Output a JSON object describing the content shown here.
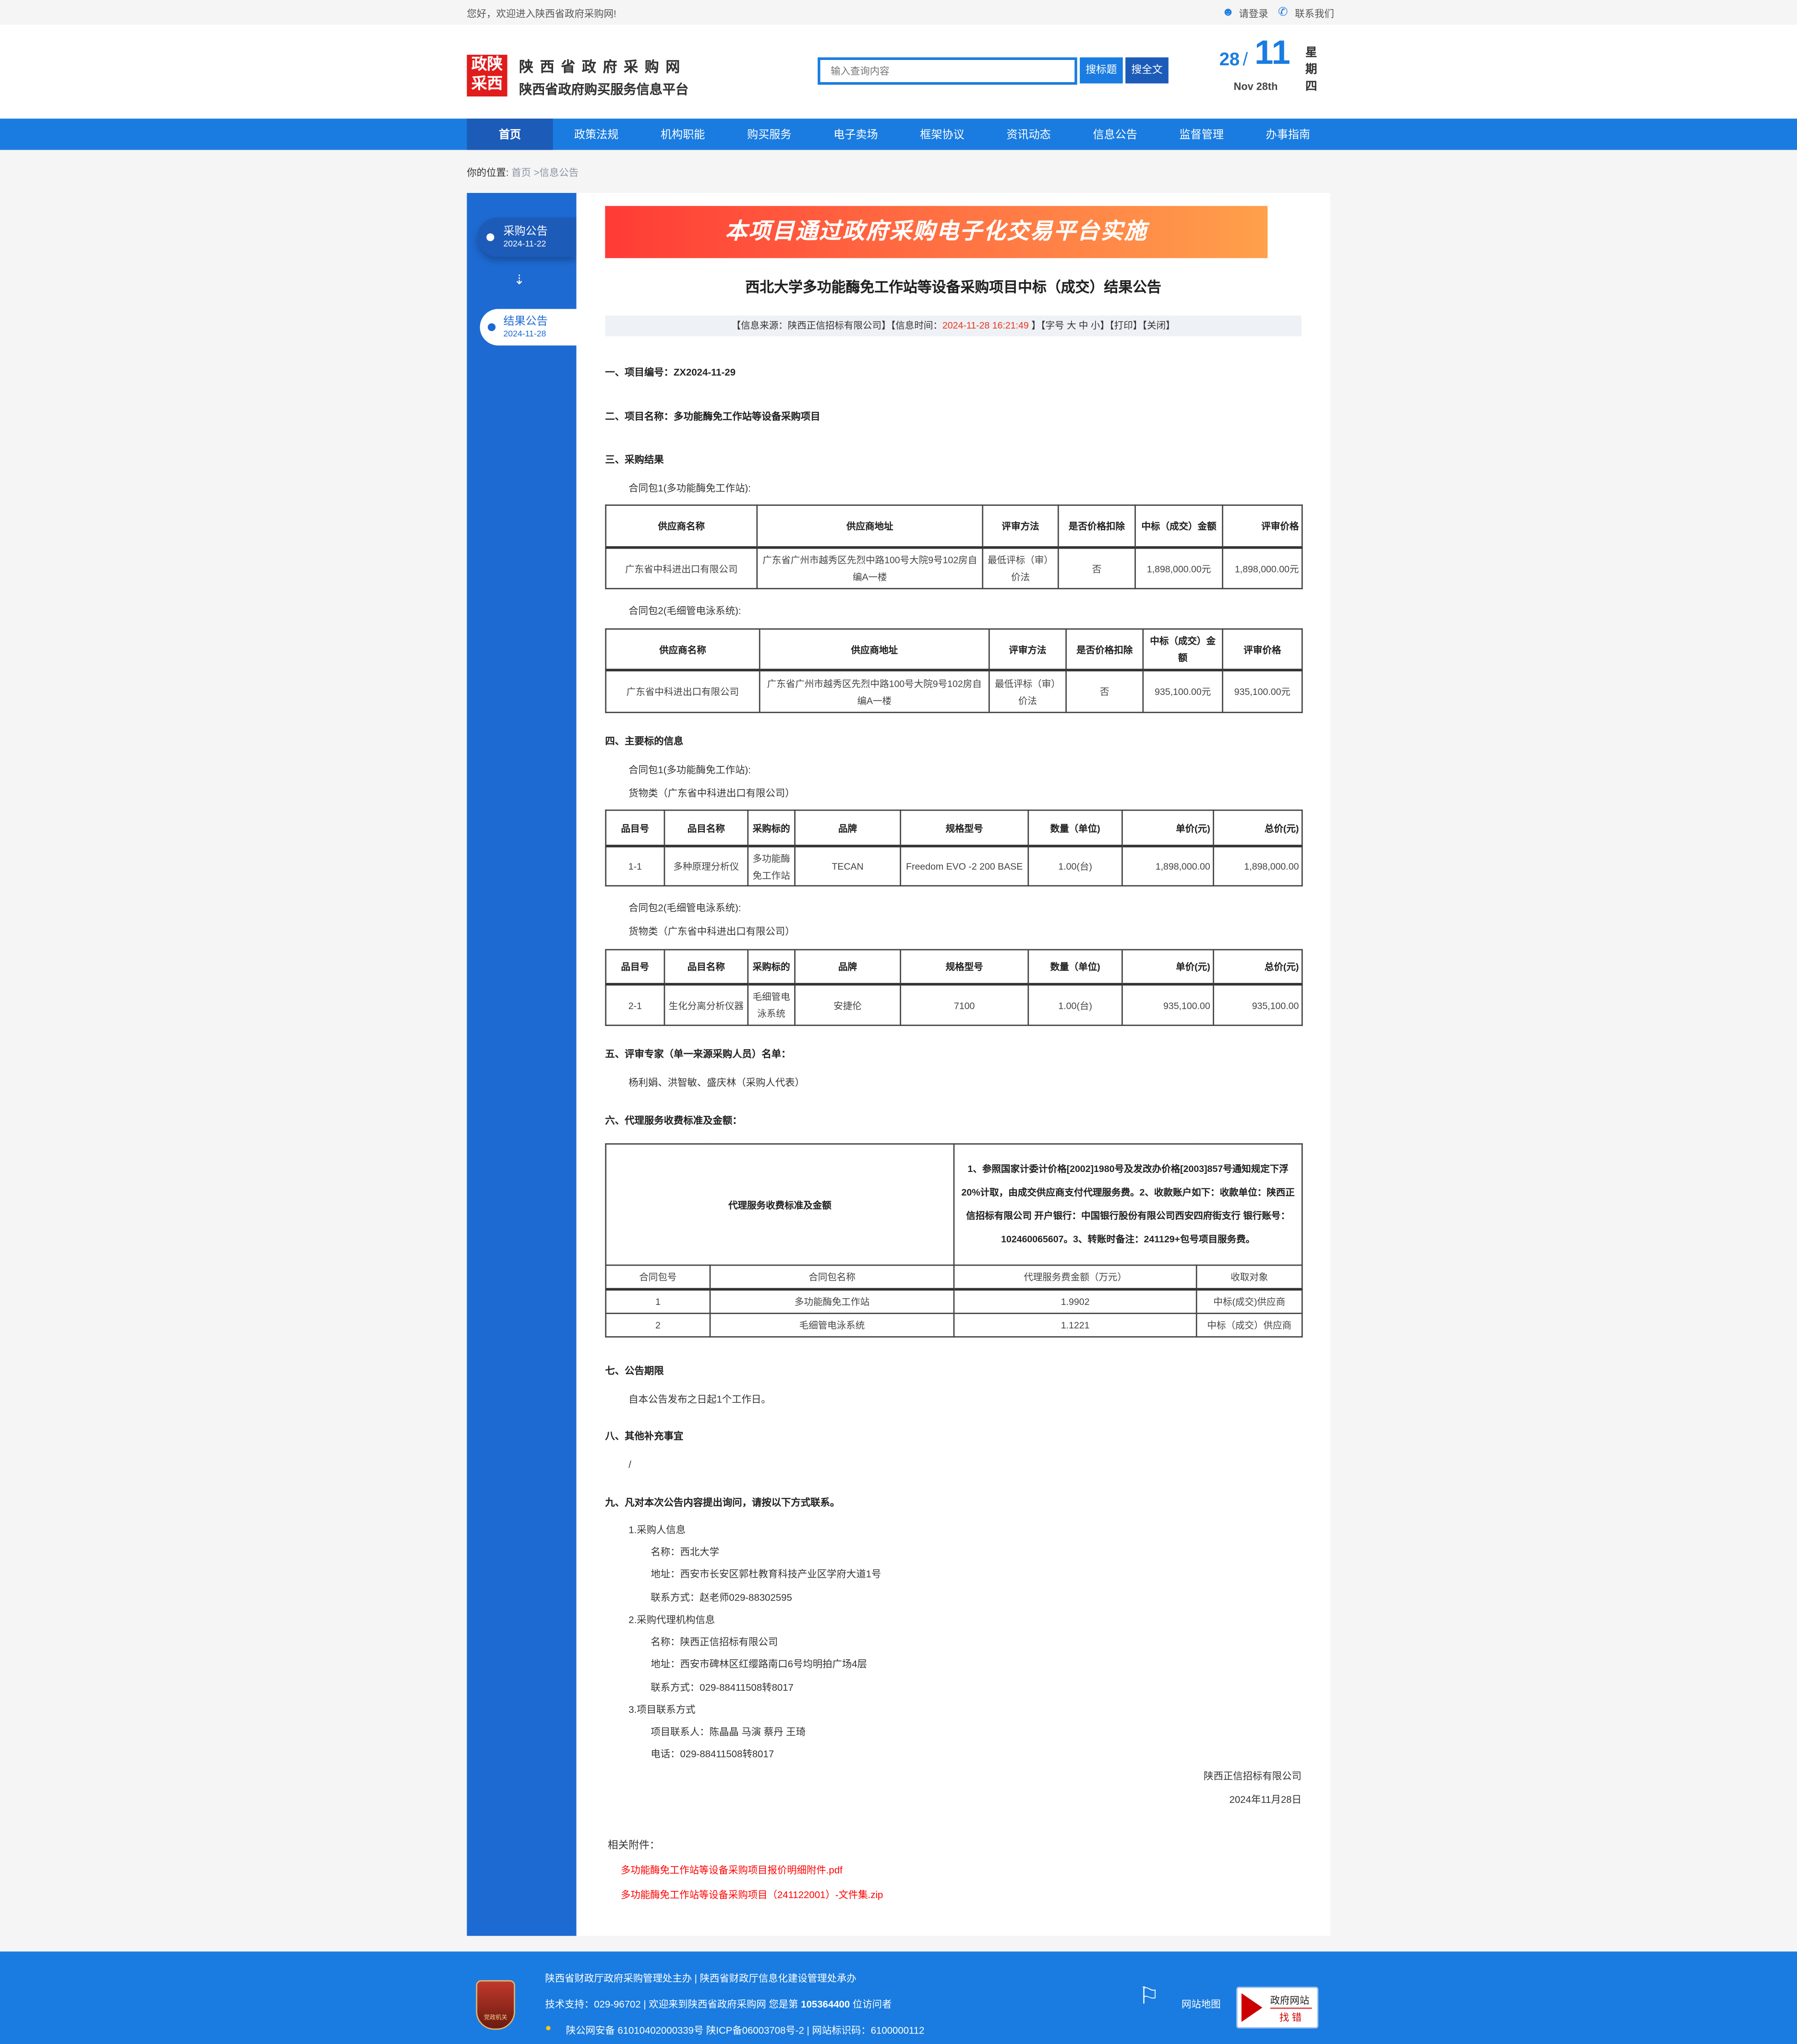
{
  "topbar": {
    "welcome": "您好，欢迎进入陕西省政府采购网!",
    "login": "请登录",
    "contact": "联系我们"
  },
  "header": {
    "logo_mark": "政陕采西",
    "site_title": "陕 西 省 政 府 采 购 网",
    "site_subtitle": "陕西省政府购买服务信息平台",
    "search_placeholder": "输入查询内容",
    "search_title_btn": "搜标题",
    "search_full_btn": "搜全文",
    "date": {
      "day": "28",
      "slash": "/",
      "month": "11",
      "en": "Nov 28th",
      "weekday": [
        "星",
        "期",
        "四"
      ]
    }
  },
  "nav": {
    "items": [
      "首页",
      "政策法规",
      "机构职能",
      "购买服务",
      "电子卖场",
      "框架协议",
      "资讯动态",
      "信息公告",
      "监督管理",
      "办事指南"
    ],
    "active": 0
  },
  "breadcrumb": {
    "label": "你的位置:",
    "home": "首页",
    "current": " >信息公告"
  },
  "sidebar": {
    "steps": [
      {
        "label": "采购公告",
        "date": "2024-11-22"
      },
      {
        "label": "结果公告",
        "date": "2024-11-28"
      }
    ]
  },
  "article": {
    "banner": "本项目通过政府采购电子化交易平台实施",
    "title": "西北大学多功能酶免工作站等设备采购项目中标（成交）结果公告",
    "meta": {
      "source": "【信息来源：陕西正信招标有限公司】【信息时间：",
      "time": "2024-11-28 16:21:49",
      "tail": "  】【字号 大 中 小】【打印】【关闭】"
    },
    "s1": "一、项目编号：ZX2024-11-29",
    "s2": "二、项目名称：多功能酶免工作站等设备采购项目",
    "s3": "三、采购结果",
    "p1_label": "合同包1(多功能酶免工作站):",
    "p2_label": "合同包2(毛细管电泳系统):",
    "result_table_1": {
      "header": [
        "供应商名称",
        "供应商地址",
        "评审方法",
        "是否价格扣除",
        "中标（成交）金额",
        "评审价格"
      ],
      "rows": [
        [
          "广东省中科进出口有限公司",
          "广东省广州市越秀区先烈中路100号大院9号102房自编A一楼",
          "最低评标（审）价法",
          "否",
          "1,898,000.00元",
          "1,898,000.00元"
        ]
      ]
    },
    "result_table_2": {
      "header": [
        "供应商名称",
        "供应商地址",
        "评审方法",
        "是否价格扣除",
        "中标（成交）金额",
        "评审价格"
      ],
      "rows": [
        [
          "广东省中科进出口有限公司",
          "广东省广州市越秀区先烈中路100号大院9号102房自编A一楼",
          "最低评标（审）价法",
          "否",
          "935,100.00元",
          "935,100.00元"
        ]
      ]
    },
    "s4": "四、主要标的信息",
    "goods_label": "货物类（广东省中科进出口有限公司）",
    "item_table_1": {
      "header": [
        "品目号",
        "品目名称",
        "采购标的",
        "品牌",
        "规格型号",
        "数量（单位)",
        "单价(元)",
        "总价(元)"
      ],
      "rows": [
        [
          "1-1",
          "多种原理分析仪",
          "多功能酶免工作站",
          "TECAN",
          "Freedom EVO -2 200 BASE",
          "1.00(台)",
          "1,898,000.00",
          "1,898,000.00"
        ]
      ]
    },
    "item_table_2": {
      "header": [
        "品目号",
        "品目名称",
        "采购标的",
        "品牌",
        "规格型号",
        "数量（单位)",
        "单价(元)",
        "总价(元)"
      ],
      "rows": [
        [
          "2-1",
          "生化分离分析仪器",
          "毛细管电泳系统",
          "安捷伦",
          "7100",
          "1.00(台)",
          "935,100.00",
          "935,100.00"
        ]
      ]
    },
    "s5": "五、评审专家（单一来源采购人员）名单：",
    "experts": "杨利娟、洪智敏、盛庆林（采购人代表）",
    "s6": "六、代理服务收费标准及金额：",
    "fee": {
      "label": "代理服务收费标准及金额",
      "desc": "1、参照国家计委计价格[2002]1980号及发改办价格[2003]857号通知规定下浮20%计取，由成交供应商支付代理服务费。2、收款账户如下：收款单位：陕西正信招标有限公司 开户银行：中国银行股份有限公司西安四府街支行 银行账号：102460065607。3、转账时备注：241129+包号项目服务费。",
      "header": [
        "合同包号",
        "合同包名称",
        "代理服务费金额（万元）",
        "收取对象"
      ],
      "rows": [
        [
          "1",
          "多功能酶免工作站",
          "1.9902",
          "中标(成交)供应商"
        ],
        [
          "2",
          "毛细管电泳系统",
          "1.1221",
          "中标（成交）供应商"
        ]
      ]
    },
    "s7": "七、公告期限",
    "period": "自本公告发布之日起1个工作日。",
    "s8": "八、其他补充事宜",
    "other": "/",
    "s9": "九、凡对本次公告内容提出询问，请按以下方式联系。",
    "contacts": [
      "1.采购人信息",
      "名称：西北大学",
      "地址：西安市长安区郭杜教育科技产业区学府大道1号",
      "联系方式：赵老师029-88302595",
      "2.采购代理机构信息",
      "名称：陕西正信招标有限公司",
      "地址：西安市碑林区红缨路南口6号均明拍广场4层",
      "联系方式：029-88411508转8017",
      "3.项目联系方式",
      "项目联系人：陈晶晶 马演 蔡丹 王琦",
      "电话：029-88411508转8017"
    ],
    "signer": "陕西正信招标有限公司",
    "sign_date": "2024年11月28日",
    "attach_label": "相关附件：",
    "attachments": [
      "多功能酶免工作站等设备采购项目报价明细附件.pdf",
      "多功能酶免工作站等设备采购项目（241122001）-文件集.zip"
    ]
  },
  "footer": {
    "emblem_text": "党政机关",
    "line1": "陕西省财政厅政府采购管理处主办 | 陕西省财政厅信息化建设管理处承办",
    "line2_pre": "技术支持：029-96702 | 欢迎来到陕西省政府采购网 您是第 ",
    "visitors": "105364400",
    "line2_post": " 位访问者",
    "line3": "陕公网安备 61010402000339号   陕ICP备06003708号-2  |  网站标识码：6100000112",
    "sitemap": "网站地图",
    "badge_top": "政府网站",
    "badge_bottom": "找 错"
  },
  "colors": {
    "brand_blue": "#1a7ce0",
    "nav_active": "#1c5bb8",
    "sidebar": "#1e6ad3",
    "highlight_red": "#e8341c",
    "link_red": "#ff0000"
  }
}
